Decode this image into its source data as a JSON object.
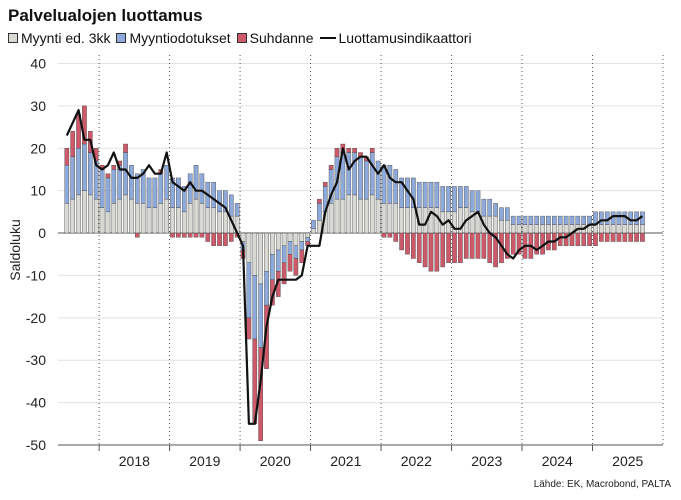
{
  "chart_data": {
    "type": "bar",
    "title": "Palvelualojen luottamus",
    "ylabel": "Saldoluku",
    "xlabel": "",
    "ylim": [
      -50,
      42
    ],
    "yticks": [
      40,
      30,
      20,
      10,
      0,
      -10,
      -20,
      -30,
      -40,
      -50
    ],
    "years": [
      "2018",
      "2019",
      "2020",
      "2021",
      "2022",
      "2023",
      "2024",
      "2025"
    ],
    "source": "Lähde: EK, Macrobond, PALTA",
    "colors": {
      "myynti_ed": "#d9d9d4",
      "myyntiodotukset": "#8eaadb",
      "suhdanne": "#cc5a6a",
      "indicator": "#111111"
    },
    "series": [
      {
        "name": "Myynti ed. 3kk",
        "key": "myynti_ed",
        "values": [
          7,
          8,
          9,
          10,
          9,
          8,
          6,
          5,
          7,
          8,
          9,
          8,
          7,
          7,
          6,
          6,
          7,
          8,
          6,
          6,
          5,
          7,
          8,
          7,
          6,
          6,
          5,
          5,
          4,
          4,
          -2,
          -7,
          -10,
          -12,
          -9,
          -5,
          -4,
          -3,
          -2,
          -3,
          -2,
          -1,
          1,
          3,
          5,
          7,
          8,
          8,
          9,
          9,
          8,
          8,
          9,
          8,
          7,
          7,
          7,
          6,
          6,
          6,
          6,
          6,
          6,
          6,
          5,
          5,
          5,
          6,
          6,
          5,
          5,
          4,
          4,
          4,
          3,
          3,
          2,
          2,
          2,
          2,
          2,
          2,
          2,
          2,
          2,
          2,
          2,
          2,
          2,
          2,
          2,
          2,
          2,
          2,
          2,
          2,
          2,
          2,
          2
        ]
      },
      {
        "name": "Myyntiodotukset",
        "key": "myyntiodotukset",
        "values": [
          9,
          10,
          11,
          11,
          10,
          9,
          9,
          8,
          8,
          8,
          10,
          8,
          7,
          8,
          7,
          7,
          7,
          8,
          7,
          7,
          6,
          7,
          8,
          7,
          6,
          6,
          5,
          5,
          5,
          3,
          -2,
          -13,
          -15,
          -15,
          -8,
          -6,
          -5,
          -4,
          -3,
          -3,
          -2,
          -1,
          2,
          4,
          6,
          8,
          10,
          11,
          10,
          10,
          10,
          9,
          10,
          9,
          9,
          9,
          8,
          7,
          7,
          7,
          6,
          6,
          6,
          6,
          6,
          6,
          6,
          5,
          5,
          5,
          5,
          4,
          4,
          3,
          3,
          3,
          2,
          2,
          2,
          2,
          2,
          2,
          2,
          2,
          2,
          2,
          2,
          2,
          2,
          2,
          3,
          3,
          3,
          3,
          3,
          3,
          3,
          3,
          3
        ]
      },
      {
        "name": "Suhdanne",
        "key": "suhdanne",
        "values": [
          4,
          6,
          8,
          9,
          5,
          3,
          1,
          1,
          1,
          1,
          2,
          0,
          -1,
          0,
          0,
          0,
          1,
          0,
          -1,
          -1,
          -1,
          -1,
          -1,
          -1,
          -2,
          -3,
          -3,
          -3,
          -2,
          -1,
          -2,
          -5,
          -20,
          -22,
          -15,
          -6,
          -6,
          -5,
          -4,
          -4,
          -3,
          -1,
          0,
          1,
          1,
          1,
          2,
          2,
          1,
          1,
          1,
          1,
          1,
          0,
          -1,
          -1,
          -2,
          -4,
          -5,
          -6,
          -7,
          -8,
          -9,
          -9,
          -8,
          -7,
          -7,
          -7,
          -6,
          -6,
          -6,
          -6,
          -7,
          -8,
          -7,
          -6,
          -5,
          -5,
          -6,
          -6,
          -5,
          -5,
          -4,
          -4,
          -3,
          -3,
          -3,
          -3,
          -3,
          -3,
          -3,
          -2,
          -2,
          -2,
          -2,
          -2,
          -2,
          -2,
          -2
        ]
      },
      {
        "name": "Luottamusindikaattori",
        "key": "indicator",
        "values": [
          23,
          26,
          29,
          22,
          22,
          16,
          15,
          16,
          19,
          15,
          15,
          13,
          13,
          14,
          16,
          14,
          14,
          19,
          12,
          11,
          10,
          12,
          10,
          10,
          9,
          8,
          7,
          6,
          3,
          0,
          -3,
          -45,
          -45,
          -35,
          -22,
          -15,
          -11,
          -11,
          -11,
          -11,
          -10,
          -3,
          -3,
          -3,
          5,
          9,
          12,
          20,
          15,
          17,
          18,
          18,
          16,
          14,
          16,
          13,
          12,
          12,
          10,
          8,
          2,
          2,
          5,
          4,
          2,
          3,
          1,
          1,
          3,
          4,
          5,
          2,
          0,
          -1,
          -3,
          -5,
          -6,
          -4,
          -3,
          -3,
          -4,
          -3,
          -2,
          -2,
          -1,
          -1,
          0,
          1,
          1,
          2,
          2,
          3,
          3,
          4,
          4,
          4,
          3,
          3,
          4
        ]
      }
    ]
  }
}
